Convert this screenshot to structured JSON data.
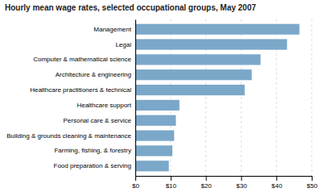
{
  "chart_data": {
    "type": "bar",
    "orientation": "horizontal",
    "title": "Hourly mean wage rates, selected occupational groups, May 2007",
    "categories": [
      "Food preparation & serving",
      "Farming, fishing, & forestry",
      "Building & grounds cleaning & maintenance",
      "Personal care & service",
      "Healthcare support",
      "Healthcare practitioners & technical",
      "Architecture & engineering",
      "Computer & mathematical science",
      "Legal",
      "Management"
    ],
    "values": [
      9.5,
      10.5,
      11.0,
      11.5,
      12.5,
      31.0,
      33.0,
      35.5,
      43.0,
      46.5
    ],
    "color": "#7ba7c9",
    "xlim": [
      0,
      50
    ],
    "xticks": [
      {
        "value": 0,
        "label": "$0"
      },
      {
        "value": 10,
        "label": "$10"
      },
      {
        "value": 20,
        "label": "$20"
      },
      {
        "value": 30,
        "label": "$30"
      },
      {
        "value": 40,
        "label": "$40"
      },
      {
        "value": 50,
        "label": "$50"
      }
    ],
    "grid": true
  }
}
